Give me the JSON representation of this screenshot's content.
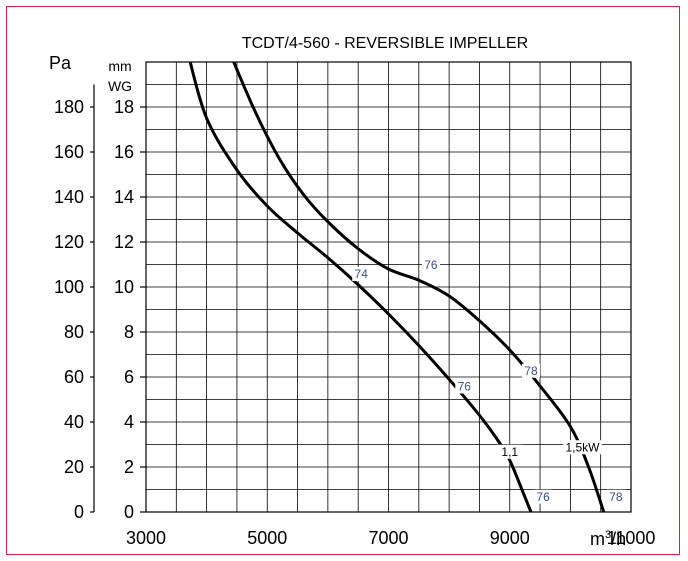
{
  "colors": {
    "frame": "#d2233c",
    "curve": "#000000",
    "efficiency_label": "#3a4f8c",
    "power_label": "#000000"
  },
  "chart_data": {
    "type": "line",
    "title": "TCDT/4-560  - REVERSIBLE IMPELLER",
    "x_unit": "m³/h",
    "x_unit_base": "m",
    "x_unit_sup": "3",
    "x_unit_tail": "/h",
    "y_unit_left": "Pa",
    "y_unit_right_line1": "mm",
    "y_unit_right_line2": "WG",
    "xlim": [
      3000,
      11000
    ],
    "ylim": [
      0,
      200
    ],
    "x_ticks": [
      3000,
      5000,
      7000,
      9000,
      11000
    ],
    "x_tick_labels": [
      "3000",
      "5000",
      "7000",
      "9000",
      "11000"
    ],
    "y_ticks": [
      0,
      20,
      40,
      60,
      80,
      100,
      120,
      140,
      160,
      180
    ],
    "y_tick_labels": [
      "0",
      "20",
      "40",
      "60",
      "80",
      "100",
      "120",
      "140",
      "160",
      "180"
    ],
    "y2_ticks": [
      0,
      2,
      4,
      6,
      8,
      10,
      12,
      14,
      16,
      18
    ],
    "y2_tick_labels": [
      "0",
      "2",
      "4",
      "6",
      "8",
      "10",
      "12",
      "14",
      "16",
      "18"
    ],
    "grid": true,
    "series": [
      {
        "name": "1,1",
        "x": [
          3700,
          4000,
          4500,
          5000,
          5500,
          6000,
          6500,
          7000,
          7500,
          8000,
          8500,
          8800,
          9000,
          9200,
          9350
        ],
        "y": [
          203,
          175,
          152,
          136,
          124,
          113,
          101,
          88,
          74,
          59,
          43,
          32,
          23,
          10,
          0
        ]
      },
      {
        "name": "1,5kW",
        "x": [
          4400,
          4800,
          5200,
          5600,
          6000,
          6500,
          7000,
          7500,
          8000,
          8500,
          9000,
          9500,
          10000,
          10300,
          10550
        ],
        "y": [
          203,
          178,
          157,
          141,
          129,
          117,
          108,
          103,
          96,
          85,
          72,
          56,
          38,
          20,
          0
        ]
      }
    ],
    "annotations": [
      {
        "text": "74",
        "x": 6550,
        "y": 104,
        "kind": "efficiency"
      },
      {
        "text": "76",
        "x": 7700,
        "y": 108,
        "kind": "efficiency"
      },
      {
        "text": "76",
        "x": 8250,
        "y": 54,
        "kind": "efficiency"
      },
      {
        "text": "78",
        "x": 9350,
        "y": 61,
        "kind": "efficiency"
      },
      {
        "text": "1,1",
        "x": 9000,
        "y": 25,
        "kind": "power"
      },
      {
        "text": "1,5kW",
        "x": 10200,
        "y": 27,
        "kind": "power"
      },
      {
        "text": "76",
        "x": 9550,
        "y": 5,
        "kind": "efficiency"
      },
      {
        "text": "78",
        "x": 10750,
        "y": 5,
        "kind": "efficiency"
      }
    ]
  }
}
